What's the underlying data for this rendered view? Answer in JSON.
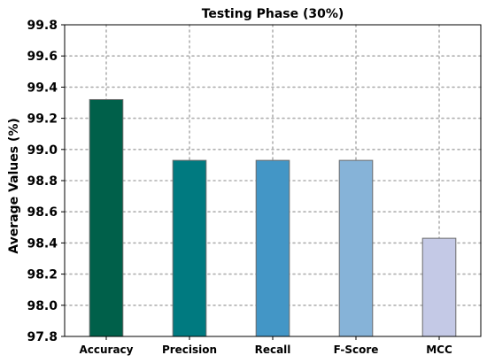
{
  "chart_data": {
    "type": "bar",
    "title": "Testing Phase (30%)",
    "xlabel": "",
    "ylabel": "Average Values (%)",
    "categories": [
      "Accuracy",
      "Precision",
      "Recall",
      "F-Score",
      "MCC"
    ],
    "values": [
      99.32,
      98.93,
      98.93,
      98.93,
      98.43
    ],
    "colors": [
      "#00604a",
      "#007a80",
      "#4396c6",
      "#86b3d8",
      "#c4c9e6"
    ],
    "ylim": [
      97.8,
      99.8
    ],
    "yticks": [
      "97.8",
      "98.0",
      "98.2",
      "98.4",
      "98.6",
      "98.8",
      "99.0",
      "99.2",
      "99.4",
      "99.6",
      "99.8"
    ],
    "grid": true,
    "legend": "none"
  }
}
